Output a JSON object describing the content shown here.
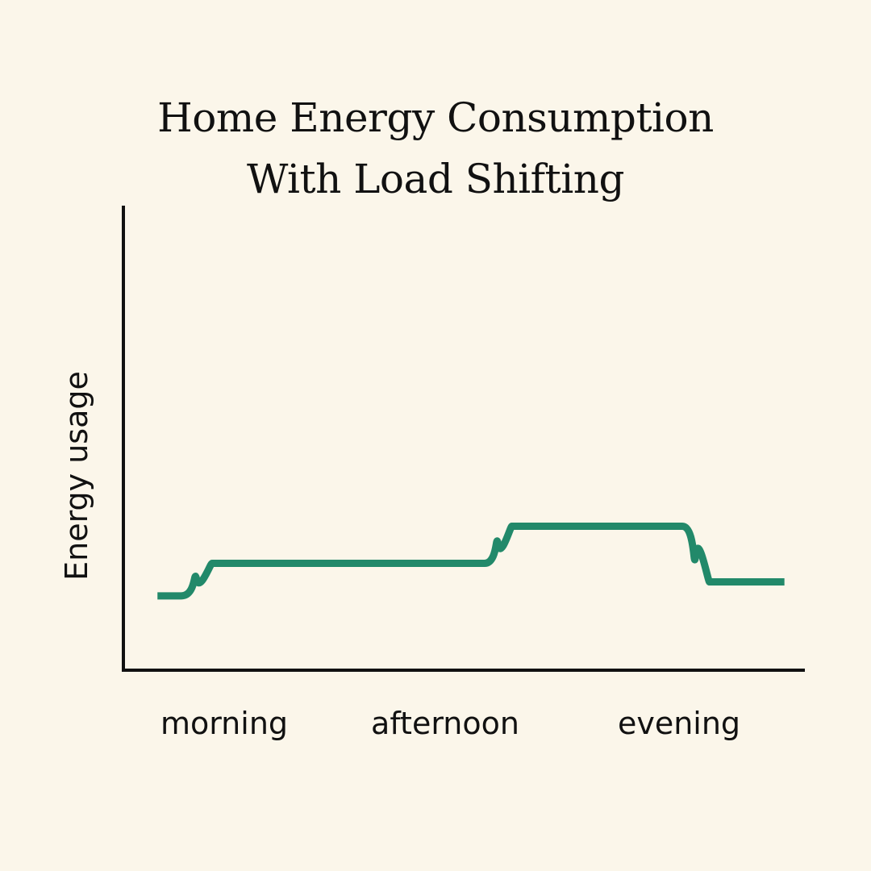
{
  "chart_data": {
    "type": "line",
    "title": [
      "Home Energy Consumption",
      "With Load Shifting"
    ],
    "xlabel": "",
    "ylabel": "Energy usage",
    "categories": [
      "morning",
      "afternoon",
      "evening"
    ],
    "x": [
      0.05,
      0.085,
      0.13,
      0.53,
      0.57,
      0.82,
      0.86,
      0.97
    ],
    "y": [
      0.16,
      0.16,
      0.23,
      0.23,
      0.31,
      0.31,
      0.19,
      0.19
    ],
    "xlim": [
      0,
      1
    ],
    "ylim": [
      0,
      1
    ],
    "grid": false,
    "series_color": "#22896a",
    "axis_color": "#111111"
  }
}
